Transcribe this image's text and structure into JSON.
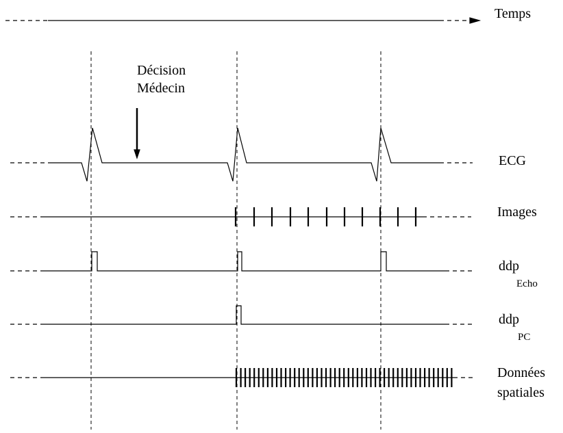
{
  "labels": {
    "time": "Temps",
    "decision_line1": "Décision",
    "decision_line2": "Médecin",
    "ecg": "ECG",
    "images": "Images",
    "ddp_echo": "ddp",
    "ddp_echo_sub": "Echo",
    "ddp_pc": "ddp",
    "ddp_pc_sub": "PC",
    "spatial_line1": "Données",
    "spatial_line2": "spatiales"
  },
  "colors": {
    "stroke": "#000000",
    "background": "#ffffff"
  }
}
